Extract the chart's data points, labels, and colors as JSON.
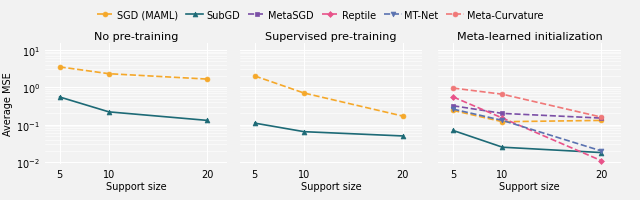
{
  "x": [
    5,
    10,
    20
  ],
  "panels": [
    "No pre-training",
    "Supervised pre-training",
    "Meta-learned initialization"
  ],
  "series": {
    "SGD (MAML)": {
      "color": "#F5A82A",
      "marker": "o",
      "linestyle": "--",
      "markersize": 3.5,
      "values": [
        [
          3.5,
          2.3,
          1.65
        ],
        [
          2.0,
          0.7,
          0.17
        ],
        [
          0.24,
          0.12,
          0.13
        ]
      ]
    },
    "SubGD": {
      "color": "#1D6A76",
      "marker": "^",
      "linestyle": "-",
      "markersize": 3.5,
      "values": [
        [
          0.55,
          0.22,
          0.13
        ],
        [
          0.11,
          0.065,
          0.05
        ],
        [
          0.07,
          0.025,
          0.018
        ]
      ]
    },
    "MetaSGD": {
      "color": "#7B4FA6",
      "marker": "s",
      "linestyle": "--",
      "markersize": 3.5,
      "values": [
        [
          null,
          null,
          null
        ],
        [
          null,
          null,
          null
        ],
        [
          0.32,
          0.2,
          0.15
        ]
      ]
    },
    "Reptile": {
      "color": "#E8538A",
      "marker": "D",
      "linestyle": "--",
      "markersize": 3.0,
      "values": [
        [
          null,
          null,
          null
        ],
        [
          null,
          null,
          null
        ],
        [
          0.55,
          0.15,
          0.011
        ]
      ]
    },
    "MT-Net": {
      "color": "#5A72B0",
      "marker": "v",
      "linestyle": "--",
      "markersize": 3.5,
      "values": [
        [
          null,
          null,
          null
        ],
        [
          null,
          null,
          null
        ],
        [
          0.26,
          0.13,
          0.02
        ]
      ]
    },
    "Meta-Curvature": {
      "color": "#F07878",
      "marker": "o",
      "linestyle": "--",
      "markersize": 3.5,
      "values": [
        [
          null,
          null,
          null
        ],
        [
          null,
          null,
          null
        ],
        [
          0.95,
          0.65,
          0.16
        ]
      ]
    }
  },
  "ylabel": "Average MSE",
  "xlabel": "Support size",
  "ylim": [
    0.009,
    15.0
  ],
  "yticks": [
    0.01,
    0.1,
    1.0,
    10.0
  ],
  "yticklabels": [
    "$10^{-2}$",
    "$10^{-1}$",
    "$10^{0}$",
    "$10^{1}$"
  ],
  "background_color": "#f2f2f2",
  "grid_color": "#ffffff",
  "title_fontsize": 8,
  "label_fontsize": 7,
  "tick_fontsize": 7,
  "legend_fontsize": 7,
  "linewidth": 1.2
}
